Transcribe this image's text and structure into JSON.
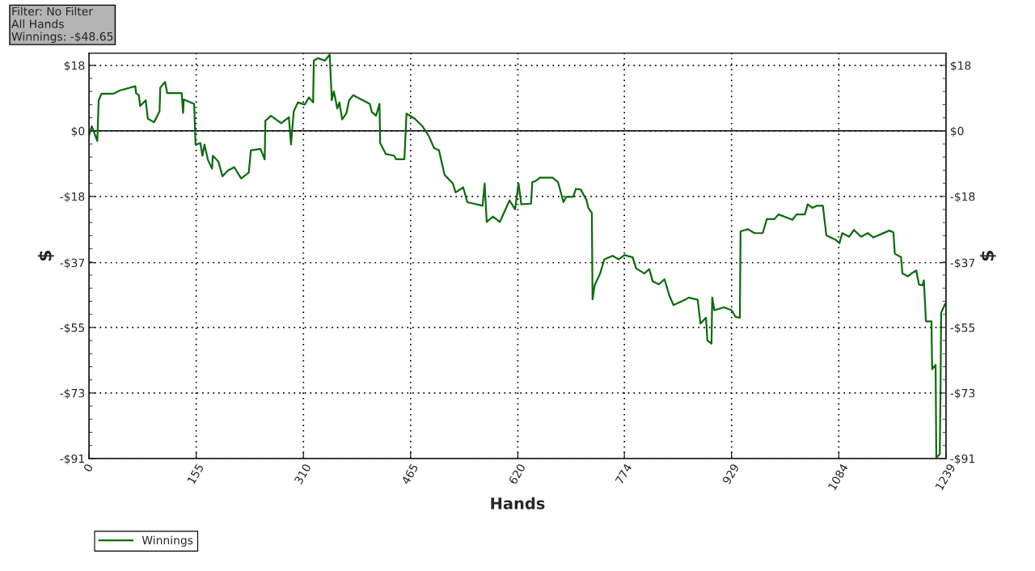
{
  "chart_data": {
    "type": "line",
    "xlabel": "Hands",
    "ylabel": "$",
    "y2label": "$",
    "annotations": [
      "Filter: No Filter",
      "All Hands",
      "Winnings: -$48.65"
    ],
    "xlim": [
      0,
      1239
    ],
    "xticks": [
      0,
      155,
      310,
      465,
      620,
      774,
      929,
      1084,
      1239
    ],
    "ylim": [
      -91,
      21.6
    ],
    "ref_lines": [
      {
        "axis": "y",
        "value": 0,
        "color": "#000000",
        "line_style": "solid"
      }
    ],
    "yticks": [
      {
        "value": 18.2,
        "label": "$18"
      },
      {
        "value": 0,
        "label": "$0"
      },
      {
        "value": -18.2,
        "label": "-$18"
      },
      {
        "value": -36.6,
        "label": "-$37"
      },
      {
        "value": -54.6,
        "label": "-$55"
      },
      {
        "value": -72.8,
        "label": "-$73"
      },
      {
        "value": -91,
        "label": "-$91"
      }
    ],
    "y2lim": [
      -91,
      21.6
    ],
    "y2ticks": [
      {
        "value": 18.2,
        "label": "$18"
      },
      {
        "value": 0,
        "label": "$0"
      },
      {
        "value": -18.2,
        "label": "-$18"
      },
      {
        "value": -36.6,
        "label": "-$37"
      },
      {
        "value": -54.6,
        "label": "-$55"
      },
      {
        "value": -72.8,
        "label": "-$73"
      },
      {
        "value": -91,
        "label": "-$91"
      }
    ],
    "grid": true,
    "legend": "bottom left",
    "line_style": "solid",
    "marker": "none",
    "series": [
      {
        "name": "Winnings",
        "color": "#0b6b0b",
        "x": [
          0,
          4,
          12,
          14,
          18,
          35,
          44,
          67,
          68,
          72,
          74,
          82,
          85,
          94,
          102,
          103,
          110,
          113,
          134,
          136,
          137,
          152,
          154,
          161,
          164,
          167,
          172,
          178,
          179,
          187,
          193,
          201,
          210,
          220,
          231,
          234,
          248,
          254,
          255,
          263,
          278,
          289,
          292,
          296,
          302,
          312,
          318,
          324,
          325,
          331,
          341,
          348,
          351,
          354,
          359,
          362,
          366,
          372,
          376,
          382,
          392,
          406,
          409,
          415,
          420,
          421,
          429,
          441,
          444,
          456,
          459,
          471,
          482,
          491,
          499,
          506,
          514,
          526,
          530,
          541,
          547,
          569,
          572,
          575,
          584,
          594,
          608,
          616,
          621,
          625,
          639,
          641,
          645,
          652,
          670,
          678,
          686,
          690,
          700,
          704,
          711,
          719,
          722,
          727,
          728,
          731,
          739,
          745,
          757,
          766,
          774,
          786,
          791,
          803,
          810,
          815,
          824,
          832,
          839,
          845,
          862,
          867,
          880,
          884,
          892,
          894,
          900,
          901,
          904,
          918,
          929,
          935,
          941,
          942,
          953,
          962,
          974,
          980,
          991,
          997,
          1017,
          1023,
          1035,
          1039,
          1046,
          1052,
          1061,
          1066,
          1079,
          1085,
          1089,
          1099,
          1106,
          1116,
          1126,
          1134,
          1146,
          1157,
          1163,
          1165,
          1174,
          1176,
          1184,
          1189,
          1196,
          1200,
          1205,
          1207,
          1210,
          1218,
          1219,
          1224,
          1225,
          1230,
          1231,
          1232,
          1238,
          1239
        ],
        "values": [
          -1.3,
          1.3,
          -2.8,
          8.5,
          10.3,
          10.3,
          11.2,
          12.4,
          10.5,
          9.9,
          6.9,
          8.5,
          3.4,
          2.4,
          5.4,
          12.0,
          13.6,
          10.5,
          10.5,
          5.0,
          8.7,
          7.5,
          -3.8,
          -3.4,
          -6.9,
          -3.8,
          -8.1,
          -10.5,
          -6.9,
          -8.5,
          -12.6,
          -11.0,
          -10.1,
          -13.2,
          -11.6,
          -5.4,
          -5.0,
          -7.9,
          2.8,
          4.2,
          2.1,
          3.8,
          -3.8,
          5.4,
          7.9,
          7.3,
          9.3,
          7.9,
          19.5,
          20.2,
          19.5,
          21.2,
          8.5,
          11.0,
          6.2,
          7.9,
          3.2,
          4.8,
          8.5,
          9.9,
          8.9,
          7.5,
          5.2,
          4.2,
          7.5,
          -3.4,
          -6.4,
          -6.9,
          -7.9,
          -7.9,
          4.8,
          3.4,
          1.3,
          -1.3,
          -4.8,
          -5.4,
          -12.2,
          -14.6,
          -17.1,
          -15.7,
          -19.8,
          -20.8,
          -14.6,
          -25.3,
          -23.8,
          -25.3,
          -19.3,
          -21.8,
          -14.6,
          -20.4,
          -20.2,
          -14.2,
          -14.0,
          -13.0,
          -13.0,
          -14.2,
          -19.8,
          -18.3,
          -18.3,
          -16.1,
          -16.3,
          -19.1,
          -21.4,
          -22.8,
          -46.8,
          -42.9,
          -39.6,
          -35.7,
          -34.7,
          -35.7,
          -34.5,
          -35.1,
          -38.2,
          -39.6,
          -38.4,
          -41.8,
          -42.6,
          -41.2,
          -45.7,
          -48.4,
          -46.9,
          -46.3,
          -46.9,
          -53.5,
          -51.9,
          -58.2,
          -59.1,
          -46.3,
          -49.8,
          -49.0,
          -49.8,
          -51.7,
          -51.9,
          -27.9,
          -27.3,
          -28.4,
          -28.4,
          -24.5,
          -24.5,
          -23.2,
          -24.7,
          -23.2,
          -23.2,
          -20.4,
          -21.4,
          -20.8,
          -20.8,
          -29.0,
          -30.2,
          -31.2,
          -28.4,
          -29.4,
          -27.5,
          -29.4,
          -28.4,
          -29.6,
          -28.6,
          -27.7,
          -28.2,
          -34.1,
          -35.1,
          -39.6,
          -40.4,
          -39.6,
          -38.8,
          -42.7,
          -42.9,
          -41.5,
          -52.9,
          -52.9,
          -66.2,
          -65.0,
          -90.8,
          -89.8,
          -73.6,
          -50.5,
          -48.0,
          -48.6
        ]
      }
    ]
  }
}
